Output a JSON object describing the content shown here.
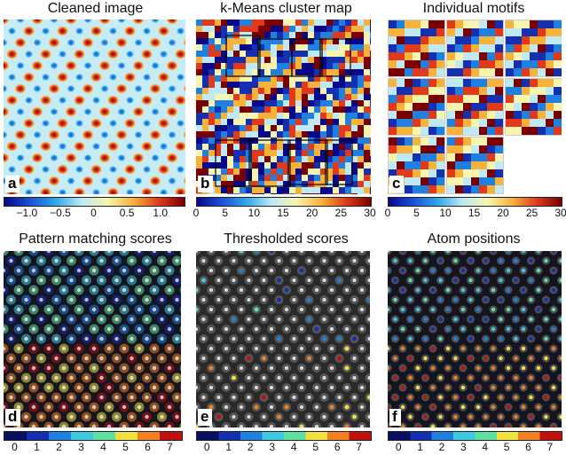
{
  "panels": {
    "a": {
      "title": "Cleaned image",
      "letter": "a",
      "colorbar_ticks": [
        "−1.0",
        "−0.5",
        "0",
        "0.5",
        "1.0"
      ]
    },
    "b": {
      "title": "k-Means cluster map",
      "letter": "b",
      "colorbar_ticks": [
        "0",
        "5",
        "10",
        "15",
        "20",
        "25",
        "30"
      ]
    },
    "c": {
      "title": "Individual motifs",
      "letter": "c",
      "colorbar_ticks": [
        "0",
        "5",
        "10",
        "15",
        "20",
        "25",
        "30"
      ]
    },
    "d": {
      "title": "Pattern matching scores",
      "letter": "d",
      "colorbar_ticks": [
        "0",
        "1",
        "2",
        "3",
        "4",
        "5",
        "6",
        "7"
      ]
    },
    "e": {
      "title": "Thresholded scores",
      "letter": "e",
      "colorbar_ticks": [
        "0",
        "1",
        "2",
        "3",
        "4",
        "5",
        "6",
        "7"
      ]
    },
    "f": {
      "title": "Atom positions",
      "letter": "f",
      "colorbar_ticks": [
        "0",
        "1",
        "2",
        "3",
        "4",
        "5",
        "6",
        "7"
      ]
    }
  },
  "colormaps": {
    "continuous": [
      "#08088a",
      "#1a50d8",
      "#2fa8e8",
      "#bfe9f5",
      "#f5f5b0",
      "#f7b23b",
      "#e03a1b",
      "#7a0000"
    ],
    "discrete8": [
      "#0a1060",
      "#1430b0",
      "#2080e0",
      "#40c8e0",
      "#60e0a0",
      "#f0e040",
      "#f08020",
      "#c01010"
    ]
  }
}
